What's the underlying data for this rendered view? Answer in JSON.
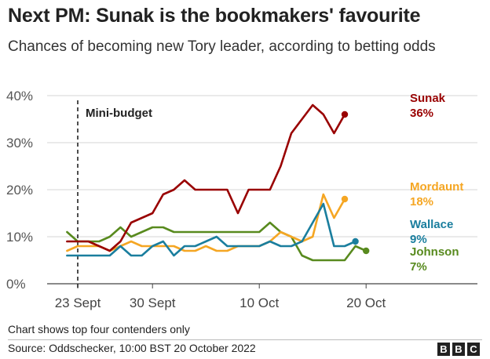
{
  "header": {
    "title": "Next PM: Sunak is the bookmakers' favourite",
    "subtitle": "Chances of becoming new Tory leader, according to betting odds"
  },
  "footer": {
    "note": "Chart shows top four contenders only",
    "source": "Source: Oddschecker, 10:00 BST 20 October 2022",
    "logo_letters": [
      "B",
      "B",
      "C"
    ]
  },
  "chart_data": {
    "type": "line",
    "x_unit": "date (Sept/Oct 2022)",
    "ylim": [
      0,
      40
    ],
    "yticks": [
      0,
      10,
      20,
      30,
      40
    ],
    "ytick_labels": [
      "0%",
      "10%",
      "20%",
      "30%",
      "40%"
    ],
    "xticks": [
      {
        "date": "2022-09-23",
        "label": "23 Sept"
      },
      {
        "date": "2022-09-30",
        "label": "30 Sept"
      },
      {
        "date": "2022-10-10",
        "label": "10 Oct"
      },
      {
        "date": "2022-10-20",
        "label": "20 Oct"
      }
    ],
    "grid": true,
    "annotation": {
      "date": "2022-09-23",
      "label": "Mini-budget"
    },
    "dates": [
      "2022-09-22",
      "2022-09-23",
      "2022-09-24",
      "2022-09-25",
      "2022-09-26",
      "2022-09-27",
      "2022-09-28",
      "2022-09-29",
      "2022-09-30",
      "2022-10-01",
      "2022-10-02",
      "2022-10-03",
      "2022-10-04",
      "2022-10-05",
      "2022-10-06",
      "2022-10-07",
      "2022-10-08",
      "2022-10-09",
      "2022-10-10",
      "2022-10-11",
      "2022-10-12",
      "2022-10-13",
      "2022-10-14",
      "2022-10-15",
      "2022-10-16",
      "2022-10-17",
      "2022-10-18",
      "2022-10-19",
      "2022-10-20"
    ],
    "series": [
      {
        "name": "Sunak",
        "end_label": "36%",
        "color": "#990000",
        "values": [
          9,
          9,
          9,
          8,
          7,
          9,
          13,
          14,
          15,
          19,
          20,
          22,
          20,
          20,
          20,
          20,
          15,
          20,
          20,
          20,
          25,
          32,
          35,
          38,
          36,
          32,
          36,
          null,
          null
        ]
      },
      {
        "name": "Mordaunt",
        "end_label": "18%",
        "color": "#f5a623",
        "values": [
          7,
          8,
          8,
          8,
          7,
          8,
          9,
          8,
          8,
          8,
          8,
          7,
          7,
          8,
          7,
          7,
          8,
          8,
          8,
          9,
          11,
          10,
          9,
          10,
          19,
          14,
          18,
          null,
          null
        ]
      },
      {
        "name": "Wallace",
        "end_label": "9%",
        "color": "#1a7e9e",
        "values": [
          6,
          6,
          6,
          6,
          6,
          8,
          6,
          6,
          8,
          9,
          6,
          8,
          8,
          9,
          10,
          8,
          8,
          8,
          8,
          9,
          8,
          8,
          9,
          13,
          17,
          8,
          8,
          9,
          null
        ]
      },
      {
        "name": "Johnson",
        "end_label": "7%",
        "color": "#588a1e",
        "values": [
          11,
          9,
          9,
          9,
          10,
          12,
          10,
          11,
          12,
          12,
          11,
          11,
          11,
          11,
          11,
          11,
          11,
          11,
          11,
          13,
          11,
          10,
          6,
          5,
          5,
          5,
          5,
          8,
          7
        ]
      }
    ]
  }
}
